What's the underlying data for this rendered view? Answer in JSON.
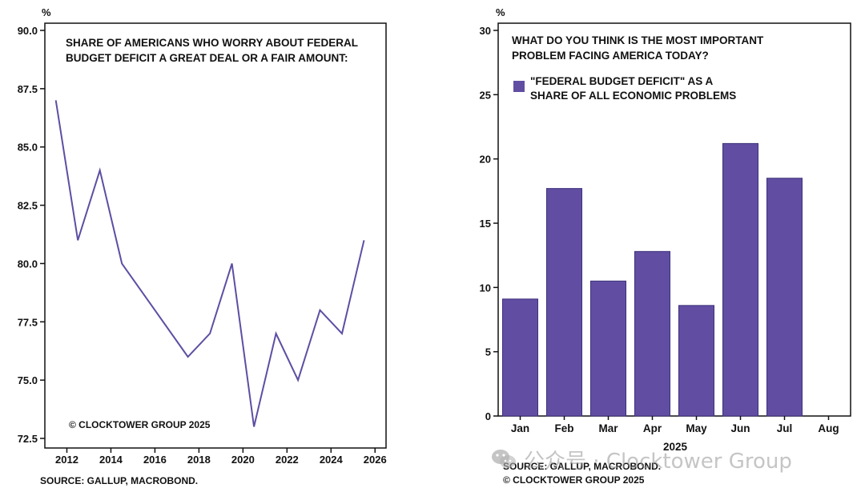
{
  "colors": {
    "line": "#5c4fa3",
    "bar": "#614ea3",
    "bar_edge": "#3d2f7a",
    "axis": "#111111"
  },
  "watermark": {
    "text": "公众号 · Clocktower Group",
    "icon": "wechat-icon"
  },
  "chart_data": [
    {
      "type": "line",
      "title": "SHARE OF AMERICANS WHO WORRY ABOUT FEDERAL BUDGET DEFICIT A GREAT DEAL OR A FAIR AMOUNT:",
      "title_lines": [
        "SHARE OF AMERICANS WHO WORRY ABOUT FEDERAL",
        "BUDGET DEFICIT A GREAT DEAL OR A FAIR AMOUNT:"
      ],
      "ylabel": "%",
      "xlim": [
        2011,
        2026.5
      ],
      "ylim": [
        72.5,
        90.0
      ],
      "yticks": [
        "72.5",
        "75.0",
        "77.5",
        "80.0",
        "82.5",
        "85.0",
        "87.5",
        "90.0"
      ],
      "xticks": [
        "2012",
        "2014",
        "2016",
        "2018",
        "2020",
        "2022",
        "2024",
        "2026"
      ],
      "x": [
        2011.5,
        2012.5,
        2013.5,
        2014.5,
        2017.5,
        2018.5,
        2019.5,
        2020.5,
        2021.5,
        2022.5,
        2023.5,
        2024.5,
        2025.5
      ],
      "y": [
        87,
        81,
        84,
        80,
        76,
        77,
        80,
        73,
        77,
        75,
        78,
        77,
        81
      ],
      "copyright": "© CLOCKTOWER GROUP 2025",
      "source": "SOURCE: GALLUP, MACROBOND."
    },
    {
      "type": "bar",
      "title": "WHAT DO YOU THINK IS THE MOST IMPORTANT PROBLEM FACING AMERICA TODAY?",
      "title_lines": [
        "WHAT DO YOU THINK IS THE MOST IMPORTANT",
        "PROBLEM FACING AMERICA TODAY?"
      ],
      "ylabel": "%",
      "xlabel": "2025",
      "ylim": [
        0,
        30
      ],
      "yticks": [
        "0",
        "5",
        "10",
        "15",
        "20",
        "25",
        "30"
      ],
      "categories": [
        "Jan",
        "Feb",
        "Mar",
        "Apr",
        "May",
        "Jun",
        "Jul",
        "Aug"
      ],
      "series": [
        {
          "name": "\"FEDERAL BUDGET DEFICIT\" AS A SHARE OF ALL ECONOMIC PROBLEMS",
          "name_lines": [
            "\"FEDERAL BUDGET DEFICIT\" AS A",
            "SHARE OF ALL ECONOMIC PROBLEMS"
          ],
          "values": [
            9.1,
            17.7,
            10.5,
            12.8,
            8.6,
            21.2,
            18.5,
            null
          ]
        }
      ],
      "source": "SOURCE: GALLUP, MACROBOND.",
      "copyright": "© CLOCKTOWER GROUP 2025"
    }
  ]
}
